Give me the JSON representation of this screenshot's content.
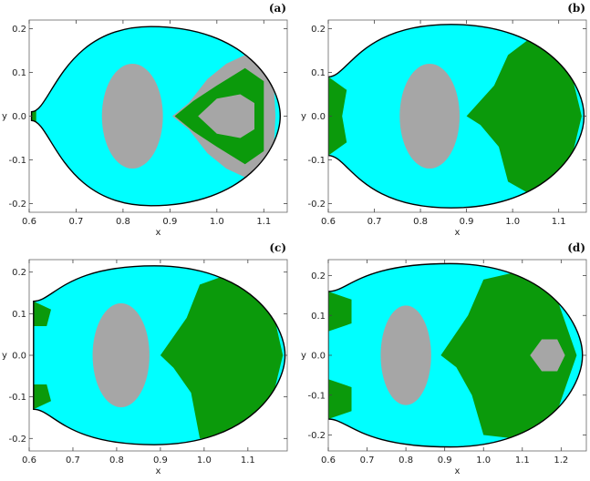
{
  "chart_data": [
    {
      "panel_label": "(a)",
      "type": "scatter",
      "xlabel": "x",
      "ylabel": "y",
      "xlim": [
        0.6,
        1.15
      ],
      "ylim": [
        -0.22,
        0.22
      ],
      "xticks": [
        0.6,
        0.7,
        0.8,
        0.9,
        1.0,
        1.1
      ],
      "xtick_labels": [
        "0.6",
        "0.7",
        "0.8",
        "0.9",
        "1.0",
        "1.1"
      ],
      "yticks": [
        -0.2,
        -0.1,
        0.0,
        0.1,
        0.2
      ],
      "ytick_labels": [
        "-0.2",
        "-0.1",
        "0.0",
        "0.1",
        "0.2"
      ],
      "colors": {
        "region": "#00ffff",
        "gray": "#a6a6a6",
        "green": "#0b9a0b",
        "boundary": "#000000"
      },
      "boundary": {
        "x_left": 0.605,
        "x_right": 1.135,
        "y_max": 0.205,
        "y_neck": 0.01
      },
      "gray_ellipse": {
        "cx": 0.82,
        "cy": 0.0,
        "rx": 0.065,
        "ry": 0.12
      },
      "right_gray": [
        [
          0.905,
          0.0
        ],
        [
          0.94,
          0.03
        ],
        [
          0.98,
          0.085
        ],
        [
          1.02,
          0.12
        ],
        [
          1.07,
          0.145
        ],
        [
          1.12,
          0.1
        ],
        [
          1.125,
          0.0
        ],
        [
          1.12,
          -0.1
        ],
        [
          1.07,
          -0.145
        ],
        [
          1.02,
          -0.12
        ],
        [
          0.98,
          -0.085
        ],
        [
          0.94,
          -0.03
        ]
      ],
      "green_fills": [
        [
          [
            0.91,
            0.0
          ],
          [
            0.95,
            0.035
          ],
          [
            1.0,
            0.07
          ],
          [
            1.06,
            0.11
          ],
          [
            1.1,
            0.08
          ],
          [
            1.1,
            -0.08
          ],
          [
            1.06,
            -0.11
          ],
          [
            1.0,
            -0.07
          ],
          [
            0.95,
            -0.035
          ]
        ],
        [
          [
            0.605,
            0.01
          ],
          [
            0.615,
            0.015
          ],
          [
            0.615,
            -0.015
          ],
          [
            0.605,
            -0.01
          ]
        ]
      ],
      "inner_gray": [
        [
          0.96,
          0.0
        ],
        [
          1.0,
          0.04
        ],
        [
          1.05,
          0.05
        ],
        [
          1.08,
          0.03
        ],
        [
          1.08,
          -0.03
        ],
        [
          1.05,
          -0.05
        ],
        [
          1.0,
          -0.04
        ]
      ]
    },
    {
      "panel_label": "(b)",
      "type": "scatter",
      "xlabel": "x",
      "ylabel": "y",
      "xlim": [
        0.6,
        1.16
      ],
      "ylim": [
        -0.22,
        0.22
      ],
      "xticks": [
        0.6,
        0.7,
        0.8,
        0.9,
        1.0,
        1.1
      ],
      "xtick_labels": [
        "0.6",
        "0.7",
        "0.8",
        "0.9",
        "1.0",
        "1.1"
      ],
      "yticks": [
        -0.2,
        -0.1,
        0.0,
        0.1,
        0.2
      ],
      "ytick_labels": [
        "-0.2",
        "-0.1",
        "0.0",
        "0.1",
        "0.2"
      ],
      "colors": {
        "region": "#00ffff",
        "gray": "#a6a6a6",
        "green": "#0b9a0b",
        "boundary": "#000000"
      },
      "boundary": {
        "x_left": 0.6,
        "x_right": 1.155,
        "y_max": 0.21,
        "y_neck": 0.09
      },
      "gray_ellipse": {
        "cx": 0.82,
        "cy": 0.0,
        "rx": 0.065,
        "ry": 0.12
      },
      "green_fills": [
        [
          [
            0.9,
            0.0
          ],
          [
            0.96,
            0.07
          ],
          [
            0.99,
            0.14
          ],
          [
            1.04,
            0.18
          ],
          [
            1.12,
            0.13
          ],
          [
            1.15,
            0.0
          ],
          [
            1.12,
            -0.13
          ],
          [
            1.04,
            -0.18
          ],
          [
            0.99,
            -0.15
          ],
          [
            0.97,
            -0.07
          ],
          [
            0.93,
            -0.02
          ]
        ],
        [
          [
            0.6,
            0.09
          ],
          [
            0.64,
            0.06
          ],
          [
            0.63,
            0.0
          ],
          [
            0.64,
            -0.06
          ],
          [
            0.6,
            -0.09
          ]
        ]
      ]
    },
    {
      "panel_label": "(c)",
      "type": "scatter",
      "xlabel": "x",
      "ylabel": "y",
      "xlim": [
        0.6,
        1.19
      ],
      "ylim": [
        -0.23,
        0.23
      ],
      "xticks": [
        0.6,
        0.7,
        0.8,
        0.9,
        1.0,
        1.1
      ],
      "xtick_labels": [
        "0.6",
        "0.7",
        "0.8",
        "0.9",
        "1.0",
        "1.1"
      ],
      "yticks": [
        -0.2,
        -0.1,
        0.0,
        0.1,
        0.2
      ],
      "ytick_labels": [
        "-0.2",
        "-0.1",
        "0.0",
        "0.1",
        "0.2"
      ],
      "colors": {
        "region": "#00ffff",
        "gray": "#a6a6a6",
        "green": "#0b9a0b",
        "boundary": "#000000"
      },
      "boundary": {
        "x_left": 0.61,
        "x_right": 1.185,
        "y_max": 0.215,
        "y_neck": 0.13
      },
      "gray_ellipse": {
        "cx": 0.81,
        "cy": 0.0,
        "rx": 0.065,
        "ry": 0.125
      },
      "green_fills": [
        [
          [
            0.9,
            0.0
          ],
          [
            0.96,
            0.09
          ],
          [
            0.99,
            0.17
          ],
          [
            1.07,
            0.2
          ],
          [
            1.15,
            0.14
          ],
          [
            1.18,
            0.0
          ],
          [
            1.15,
            -0.13
          ],
          [
            1.06,
            -0.2
          ],
          [
            0.99,
            -0.2
          ],
          [
            0.97,
            -0.09
          ],
          [
            0.93,
            -0.03
          ]
        ],
        [
          [
            0.61,
            0.13
          ],
          [
            0.65,
            0.11
          ],
          [
            0.64,
            0.07
          ],
          [
            0.61,
            0.07
          ]
        ],
        [
          [
            0.61,
            -0.13
          ],
          [
            0.65,
            -0.11
          ],
          [
            0.64,
            -0.07
          ],
          [
            0.61,
            -0.07
          ]
        ]
      ]
    },
    {
      "panel_label": "(d)",
      "type": "scatter",
      "xlabel": "x",
      "ylabel": "y",
      "xlim": [
        0.6,
        1.265
      ],
      "ylim": [
        -0.24,
        0.24
      ],
      "xticks": [
        0.6,
        0.7,
        0.8,
        0.9,
        1.0,
        1.1,
        1.2
      ],
      "xtick_labels": [
        "0.6",
        "0.7",
        "0.8",
        "0.9",
        "1.0",
        "1.1",
        "1.2"
      ],
      "yticks": [
        -0.2,
        -0.1,
        0.0,
        0.1,
        0.2
      ],
      "ytick_labels": [
        "-0.2",
        "-0.1",
        "0.0",
        "0.1",
        "0.2"
      ],
      "colors": {
        "region": "#00ffff",
        "gray": "#a6a6a6",
        "green": "#0b9a0b",
        "boundary": "#000000"
      },
      "boundary": {
        "x_left": 0.6,
        "x_right": 1.255,
        "y_max": 0.23,
        "y_neck": 0.16
      },
      "gray_ellipse": {
        "cx": 0.8,
        "cy": 0.0,
        "rx": 0.065,
        "ry": 0.125
      },
      "green_fills": [
        [
          [
            0.89,
            0.0
          ],
          [
            0.96,
            0.1
          ],
          [
            1.0,
            0.19
          ],
          [
            1.09,
            0.21
          ],
          [
            1.19,
            0.14
          ],
          [
            1.24,
            0.0
          ],
          [
            1.19,
            -0.14
          ],
          [
            1.09,
            -0.21
          ],
          [
            1.0,
            -0.2
          ],
          [
            0.97,
            -0.1
          ],
          [
            0.93,
            -0.03
          ]
        ],
        [
          [
            0.6,
            0.16
          ],
          [
            0.66,
            0.14
          ],
          [
            0.66,
            0.08
          ],
          [
            0.6,
            0.06
          ]
        ],
        [
          [
            0.6,
            -0.16
          ],
          [
            0.66,
            -0.14
          ],
          [
            0.66,
            -0.08
          ],
          [
            0.6,
            -0.06
          ]
        ]
      ],
      "inner_gray": [
        [
          1.12,
          0.0
        ],
        [
          1.15,
          0.04
        ],
        [
          1.19,
          0.04
        ],
        [
          1.21,
          0.0
        ],
        [
          1.19,
          -0.04
        ],
        [
          1.15,
          -0.04
        ]
      ]
    }
  ]
}
